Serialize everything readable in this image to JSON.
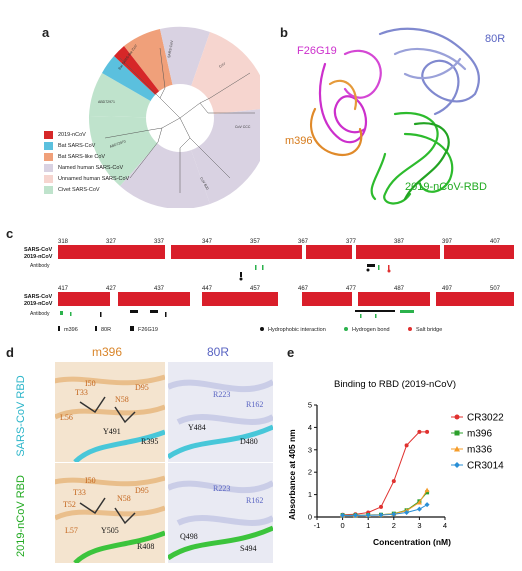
{
  "panels": {
    "a": "a",
    "b": "b",
    "c": "c",
    "d": "d",
    "e": "e"
  },
  "tree_legend": [
    {
      "label": "2019-nCoV",
      "color": "#d62728"
    },
    {
      "label": "Bat SARS-CoV",
      "color": "#5bc0de"
    },
    {
      "label": "Bat SARS-like CoV",
      "color": "#f0a07a"
    },
    {
      "label": "Named human SARS-CoV",
      "color": "#d9d2e2"
    },
    {
      "label": "Unnamed human SARS-CoV",
      "color": "#f6d5cf"
    },
    {
      "label": "Civet SARS-CoV",
      "color": "#bfe3cc"
    }
  ],
  "structure_labels": {
    "f26g19": "F26G19",
    "r80": "80R",
    "m396": "m396",
    "rbd": "2019-nCoV-RBD"
  },
  "alignment": {
    "row1_numbers": [
      "318",
      "327",
      "337",
      "347",
      "357",
      "367",
      "377",
      "387",
      "397",
      "407"
    ],
    "row2_numbers": [
      "417",
      "427",
      "437",
      "447",
      "457",
      "467",
      "477",
      "487",
      "497",
      "507"
    ],
    "seq_labels": [
      "SARS-CoV",
      "2019-nCoV"
    ],
    "antibody_label": "Antibody",
    "legend": [
      "m396",
      "80R",
      "F26G19",
      "Hydrophobic interaction",
      "Hydrogen bond",
      "Salt bridge"
    ]
  },
  "panel_d": {
    "col_m396": "m396",
    "col_80r": "80R",
    "row_sars": "SARS-CoV RBD",
    "row_ncov": "2019-nCoV RBD",
    "res_sars_m396": [
      "T33",
      "I50",
      "N58",
      "D95",
      "L56",
      "Y491",
      "R395"
    ],
    "res_sars_80r": [
      "R223",
      "R162",
      "Y484",
      "D480"
    ],
    "res_ncov_m396": [
      "I50",
      "N58",
      "D95",
      "T33",
      "T52",
      "L57",
      "Y505",
      "R408"
    ],
    "res_ncov_80r": [
      "R223",
      "R162",
      "Q498",
      "S494"
    ]
  },
  "chart_data": {
    "type": "line",
    "title": "Binding to RBD (2019-nCoV)",
    "xlabel": "Concentration (nM)",
    "ylabel": "Absorbance at 405 nm",
    "xlim": [
      -1,
      4
    ],
    "ylim": [
      0,
      5
    ],
    "xticks": [
      "-1",
      "0",
      "1",
      "2",
      "3",
      "4"
    ],
    "yticks": [
      "0",
      "1",
      "2",
      "3",
      "4",
      "5"
    ],
    "series": [
      {
        "name": "CR3022",
        "color": "#e0312f",
        "marker": "circle",
        "x": [
          0,
          0.5,
          1,
          1.5,
          2,
          2.5,
          3,
          3.3
        ],
        "y": [
          0.1,
          0.12,
          0.2,
          0.45,
          1.6,
          3.2,
          3.8,
          3.8
        ]
      },
      {
        "name": "m396",
        "color": "#2ca02c",
        "marker": "square",
        "x": [
          0,
          0.5,
          1,
          1.5,
          2,
          2.5,
          3,
          3.3
        ],
        "y": [
          0.08,
          0.08,
          0.09,
          0.1,
          0.15,
          0.3,
          0.7,
          1.1
        ]
      },
      {
        "name": "m336",
        "color": "#f59c2a",
        "marker": "triangle",
        "x": [
          0,
          0.5,
          1,
          1.5,
          2,
          2.5,
          3,
          3.3
        ],
        "y": [
          0.08,
          0.08,
          0.09,
          0.1,
          0.14,
          0.28,
          0.65,
          1.2
        ]
      },
      {
        "name": "CR3014",
        "color": "#2a8fd6",
        "marker": "diamond",
        "x": [
          0,
          0.5,
          1,
          1.5,
          2,
          2.5,
          3,
          3.3
        ],
        "y": [
          0.07,
          0.07,
          0.08,
          0.09,
          0.12,
          0.2,
          0.35,
          0.55
        ]
      }
    ]
  }
}
